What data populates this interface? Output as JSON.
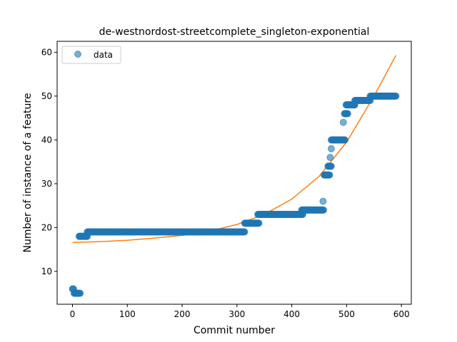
{
  "chart_data": {
    "type": "scatter",
    "title": "de-westnordost-streetcomplete_singleton-exponential",
    "xlabel": "Commit number",
    "ylabel": "Number of instance of a feature",
    "xlim": [
      -28,
      618
    ],
    "ylim": [
      2.5,
      62.5
    ],
    "xticks": [
      0,
      100,
      200,
      300,
      400,
      500,
      600
    ],
    "yticks": [
      10,
      20,
      30,
      40,
      50,
      60
    ],
    "grid": false,
    "legend": {
      "position": "top-left",
      "entries": [
        "data"
      ]
    },
    "series": [
      {
        "name": "data",
        "kind": "points",
        "color": "#1f77b4",
        "segments": [
          {
            "x_start": 0,
            "x_end": 2,
            "y": 6
          },
          {
            "x_start": 3,
            "x_end": 14,
            "y": 5
          },
          {
            "x_start": 12,
            "x_end": 27,
            "y": 18
          },
          {
            "x_start": 27,
            "x_end": 314,
            "y": 19
          },
          {
            "x_start": 314,
            "x_end": 340,
            "y": 21
          },
          {
            "x_start": 338,
            "x_end": 420,
            "y": 23
          },
          {
            "x_start": 418,
            "x_end": 458,
            "y": 24
          },
          {
            "x_start": 459,
            "x_end": 469,
            "y": 32
          },
          {
            "x_start": 466,
            "x_end": 472,
            "y": 34
          },
          {
            "x_start": 472,
            "x_end": 497,
            "y": 40
          },
          {
            "x_start": 496,
            "x_end": 502,
            "y": 46
          },
          {
            "x_start": 499,
            "x_end": 515,
            "y": 48
          },
          {
            "x_start": 515,
            "x_end": 543,
            "y": 49
          },
          {
            "x_start": 543,
            "x_end": 590,
            "y": 50
          }
        ],
        "points": [
          {
            "x": 457,
            "y": 26
          },
          {
            "x": 470,
            "y": 36
          },
          {
            "x": 472,
            "y": 38
          },
          {
            "x": 494,
            "y": 44
          }
        ]
      },
      {
        "name": "",
        "kind": "line",
        "color": "#ff7f0e",
        "x": [
          0,
          50,
          100,
          150,
          200,
          250,
          300,
          350,
          400,
          450,
          500,
          550,
          590
        ],
        "y": [
          16.6,
          16.8,
          17.1,
          17.6,
          18.2,
          19.2,
          20.7,
          23.0,
          26.5,
          31.7,
          39.5,
          50.0,
          59.3
        ]
      }
    ]
  }
}
